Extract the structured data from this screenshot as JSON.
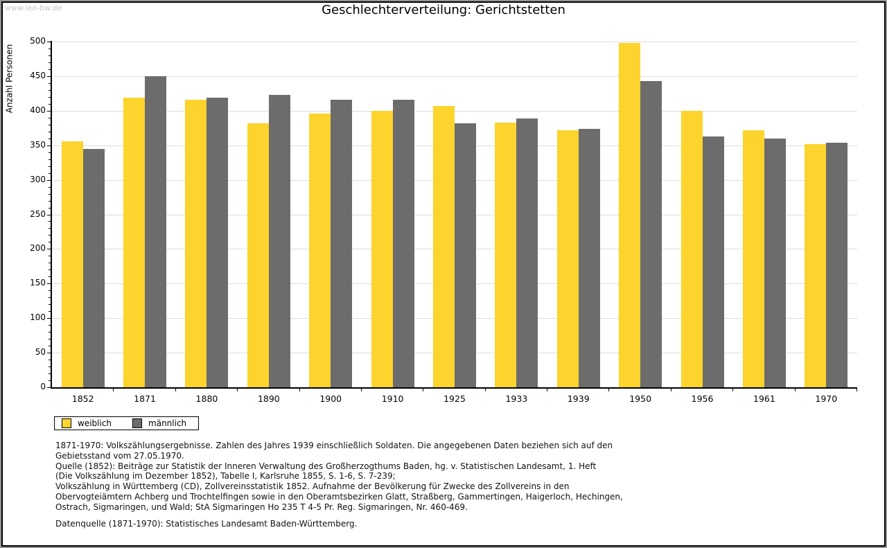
{
  "watermark": "www.leo-bw.de",
  "chart_data": {
    "type": "bar",
    "title": "Geschlechterverteilung: Gerichtstetten",
    "xlabel": "",
    "ylabel": "Anzahl Personen",
    "ylim": [
      0,
      500
    ],
    "y_major_step": 50,
    "y_minor_step": 10,
    "grid": "horizontal",
    "legend_position": "bottom-left",
    "categories": [
      "1852",
      "1871",
      "1880",
      "1890",
      "1900",
      "1910",
      "1925",
      "1933",
      "1939",
      "1950",
      "1956",
      "1961",
      "1970"
    ],
    "series": [
      {
        "name": "weiblich",
        "color": "#fcd42d",
        "values": [
          356,
          419,
          416,
          382,
          396,
          400,
          407,
          383,
          372,
          498,
          400,
          372,
          352
        ]
      },
      {
        "name": "männlich",
        "color": "#6c6c6c",
        "values": [
          345,
          450,
          419,
          423,
          416,
          416,
          382,
          389,
          374,
          443,
          363,
          360,
          354
        ]
      }
    ],
    "colors": {
      "gridline": "#dcdcdc",
      "axis": "#000000",
      "watermark": "#c6c6c6",
      "frame_outer": "#949494",
      "frame_inner": "#000000"
    }
  },
  "notes": {
    "lines": [
      "1871-1970: Volkszählungsergebnisse. Zahlen des Jahres 1939 einschließlich Soldaten. Die angegebenen Daten beziehen sich auf den",
      "Gebietsstand vom 27.05.1970.",
      "Quelle (1852): Beiträge zur Statistik der Inneren Verwaltung des Großherzogthums Baden, hg. v. Statistischen Landesamt, 1. Heft",
      "(Die Volkszählung im Dezember 1852), Tabelle I, Karlsruhe 1855, S. 1-6, S. 7-239;",
      "Volkszählung in Württemberg (CD), Zollvereinsstatistik 1852. Aufnahme der Bevölkerung für Zwecke des Zollvereins in den",
      "Obervogteiämtern Achberg und Trochtelfingen sowie in den Oberamtsbezirken Glatt, Straßberg, Gammertingen, Haigerloch, Hechingen,",
      "Ostrach, Sigmaringen, und Wald; StA Sigmaringen Ho 235 T 4-5 Pr. Reg. Sigmaringen, Nr. 460-469."
    ],
    "datenquelle": "Datenquelle (1871-1970): Statistisches Landesamt Baden-Württemberg."
  }
}
